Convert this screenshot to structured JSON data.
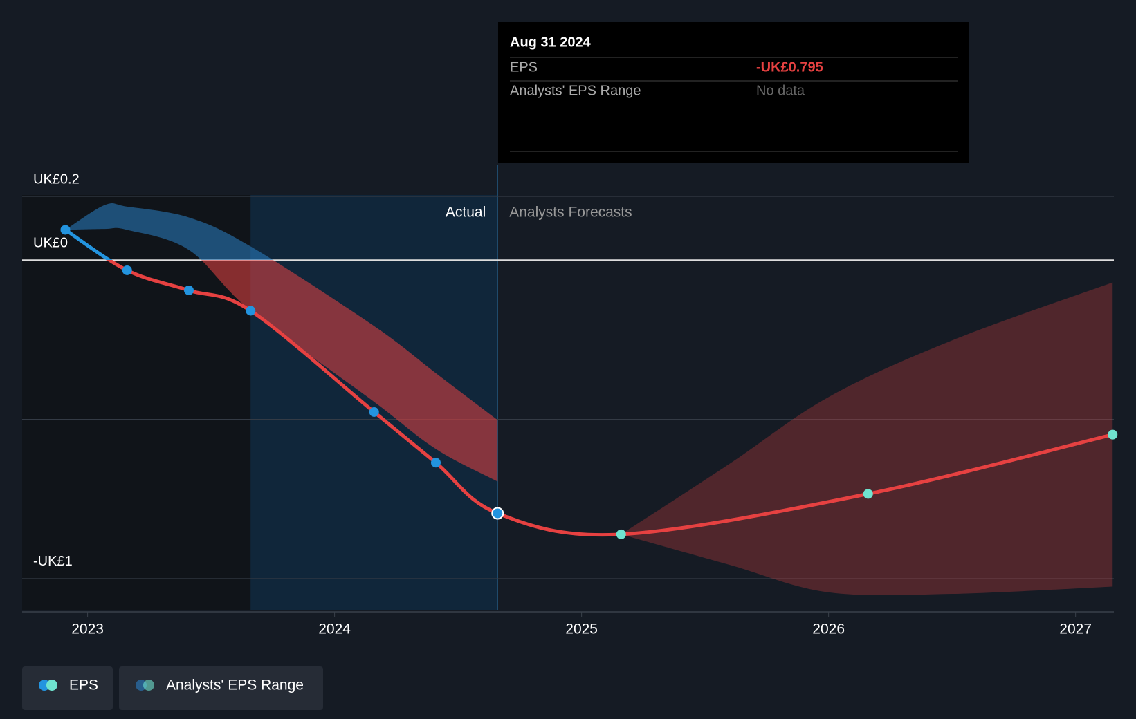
{
  "chart_data": {
    "type": "line",
    "xlim": [
      2022.735,
      2027.155
    ],
    "xticks": [
      2023,
      2024,
      2025,
      2026,
      2027
    ],
    "ylim": [
      -1.1,
      0.3
    ],
    "yticks": [
      {
        "value": 0.2,
        "label": "UK£0.2"
      },
      {
        "value": 0,
        "label": "UK£0"
      },
      {
        "value": -0.5,
        "label": null
      },
      {
        "value": -1,
        "label": "-UK£1"
      }
    ],
    "grid": true,
    "actual_start_x": 2023.66,
    "actual_end_x": 2024.66,
    "actual_label": "Actual",
    "forecast_label": "Analysts Forecasts",
    "series": [
      {
        "name": "EPS",
        "color": "#e64141",
        "color_above_zero": "#2394df",
        "actual_point_color": "#2394df",
        "forecast_point_color": "#6fe3cf",
        "x": [
          2022.91,
          2023.16,
          2023.41,
          2023.66,
          2024.16,
          2024.41,
          2024.66,
          2025.16,
          2026.16,
          2027.15
        ],
        "values": [
          0.095,
          -0.032,
          -0.095,
          -0.159,
          -0.477,
          -0.636,
          -0.795,
          -0.861,
          -0.734,
          -0.548
        ]
      }
    ],
    "range": {
      "name": "Analysts' EPS Range",
      "color": "#e64141",
      "color_above_zero": "#2a7fc4",
      "bands": [
        {
          "x": [
            2022.91,
            2023.07,
            2023.16,
            2023.41,
            2023.66,
            2024.16,
            2024.41,
            2024.66
          ],
          "high": [
            0.095,
            0.173,
            0.168,
            0.134,
            0.043,
            -0.207,
            -0.355,
            -0.502
          ],
          "low": [
            0.095,
            0.098,
            0.095,
            0.032,
            -0.159,
            -0.445,
            -0.593,
            -0.695
          ]
        },
        {
          "x": [
            2025.16,
            2025.6,
            2026.0,
            2026.5,
            2027.15
          ],
          "high": [
            -0.861,
            -0.639,
            -0.43,
            -0.252,
            -0.07
          ],
          "low": [
            -0.861,
            -0.957,
            -1.043,
            -1.048,
            -1.025
          ]
        }
      ]
    },
    "tooltip": {
      "title": "Aug 31 2024",
      "rows": [
        [
          "EPS",
          "-UK£0.795"
        ],
        [
          "Analysts' EPS Range",
          "No data"
        ]
      ],
      "index": 6
    }
  }
}
